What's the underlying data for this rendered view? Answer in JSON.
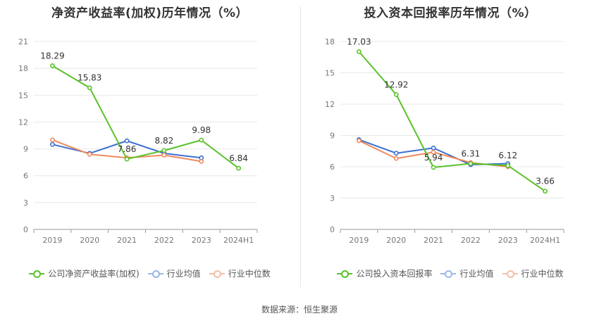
{
  "source": "数据来源：恒生聚源",
  "colors": {
    "company": "#5ac229",
    "avg": "#3d6fd3",
    "median": "#f08a5d",
    "grid": "#e8e8e8",
    "axis": "#999999"
  },
  "legend_labels_left": [
    "公司净资产收益率(加权)",
    "行业均值",
    "行业中位数"
  ],
  "legend_labels_right": [
    "公司投入资本回报率",
    "行业均值",
    "行业中位数"
  ],
  "chart_data": [
    {
      "type": "line",
      "title": "净资产收益率(加权)历年情况（%）",
      "categories": [
        "2019",
        "2020",
        "2021",
        "2022",
        "2023",
        "2024H1"
      ],
      "ylim": [
        0,
        21
      ],
      "yticks": [
        0,
        3,
        6,
        9,
        12,
        15,
        18,
        21
      ],
      "grid": true,
      "legend_position": "bottom",
      "series": [
        {
          "name": "公司净资产收益率(加权)",
          "values": [
            18.29,
            15.83,
            7.86,
            8.82,
            9.98,
            6.84
          ],
          "labels": [
            "18.29",
            "15.83",
            "7.86",
            "8.82",
            "9.98",
            "6.84"
          ]
        },
        {
          "name": "行业均值",
          "values": [
            9.5,
            8.5,
            9.9,
            8.5,
            8.0,
            null
          ]
        },
        {
          "name": "行业中位数",
          "values": [
            10.0,
            8.4,
            8.0,
            8.3,
            7.6,
            null
          ]
        }
      ]
    },
    {
      "type": "line",
      "title": "投入资本回报率历年情况（%）",
      "categories": [
        "2019",
        "2020",
        "2021",
        "2022",
        "2023",
        "2024H1"
      ],
      "ylim": [
        0,
        18
      ],
      "yticks": [
        0,
        3,
        6,
        9,
        12,
        15,
        18
      ],
      "grid": true,
      "legend_position": "bottom",
      "series": [
        {
          "name": "公司投入资本回报率",
          "values": [
            17.03,
            12.92,
            5.94,
            6.31,
            6.12,
            3.66
          ],
          "labels": [
            "17.03",
            "12.92",
            "5.94",
            "6.31",
            "6.12",
            "3.66"
          ]
        },
        {
          "name": "行业均值",
          "values": [
            8.6,
            7.3,
            7.8,
            6.2,
            6.3,
            null
          ]
        },
        {
          "name": "行业中位数",
          "values": [
            8.5,
            6.8,
            7.4,
            6.4,
            6.0,
            null
          ]
        }
      ]
    }
  ]
}
